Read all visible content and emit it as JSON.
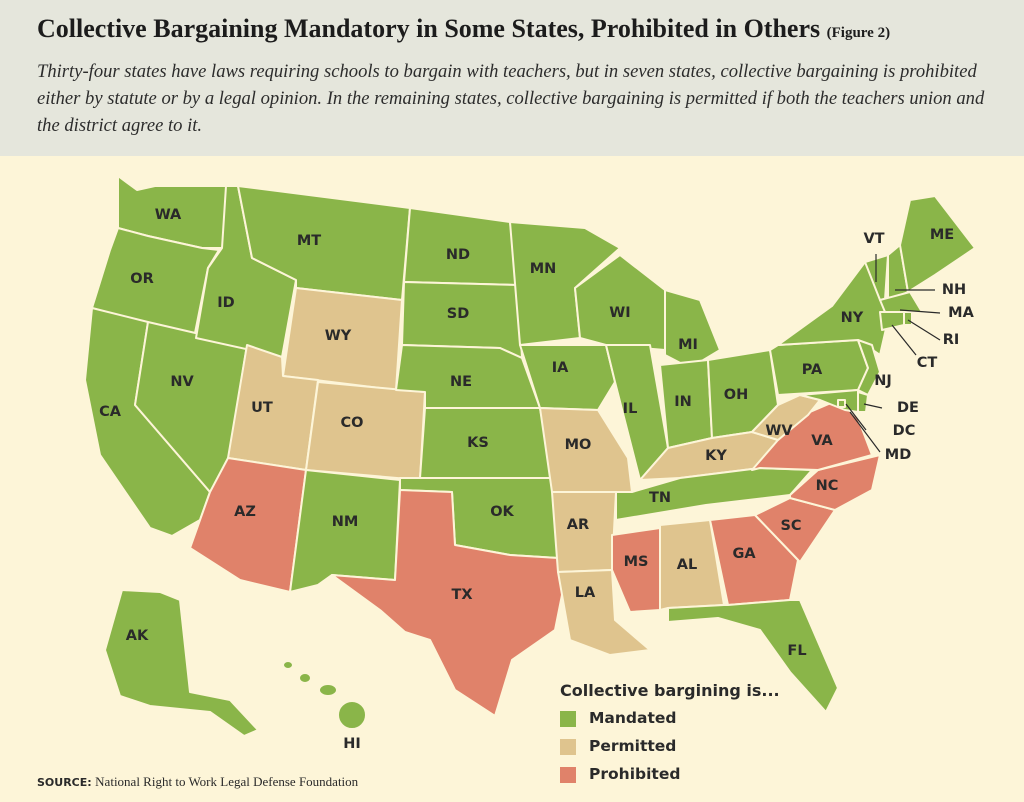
{
  "title": "Collective Bargaining Mandatory in Some States, Prohibited in Others",
  "figure_label": "(Figure 2)",
  "subtitle": "Thirty-four states have laws requiring schools to bargain with teachers, but in seven states, collective bargaining is prohibited either by statute or by a legal opinion. In the remaining states, collective bargaining is permitted if both the teachers union and the district agree to it.",
  "colors": {
    "mandated": "#8ab549",
    "permitted": "#dfc48e",
    "prohibited": "#e0826a",
    "background": "#fdf5d8",
    "header": "#e5e6dc"
  },
  "legend": {
    "title": "Collective bargining is...",
    "items": [
      {
        "key": "mandated",
        "label": "Mandated"
      },
      {
        "key": "permitted",
        "label": "Permitted"
      },
      {
        "key": "prohibited",
        "label": "Prohibited"
      }
    ]
  },
  "states": {
    "WA": "mandated",
    "OR": "mandated",
    "CA": "mandated",
    "NV": "mandated",
    "ID": "mandated",
    "MT": "mandated",
    "WY": "permitted",
    "UT": "permitted",
    "CO": "permitted",
    "AZ": "prohibited",
    "NM": "mandated",
    "ND": "mandated",
    "SD": "mandated",
    "NE": "mandated",
    "KS": "mandated",
    "OK": "mandated",
    "TX": "prohibited",
    "MN": "mandated",
    "IA": "mandated",
    "MO": "permitted",
    "AR": "permitted",
    "LA": "permitted",
    "WI": "mandated",
    "IL": "mandated",
    "MI": "mandated",
    "IN": "mandated",
    "OH": "mandated",
    "KY": "permitted",
    "TN": "mandated",
    "MS": "prohibited",
    "AL": "permitted",
    "GA": "prohibited",
    "FL": "mandated",
    "SC": "prohibited",
    "NC": "prohibited",
    "VA": "prohibited",
    "WV": "permitted",
    "PA": "mandated",
    "NY": "mandated",
    "VT": "mandated",
    "NH": "mandated",
    "ME": "mandated",
    "MA": "mandated",
    "RI": "mandated",
    "CT": "mandated",
    "NJ": "mandated",
    "DE": "mandated",
    "MD": "mandated",
    "DC": "mandated",
    "AK": "mandated",
    "HI": "mandated"
  },
  "source": {
    "label": "SOURCE:",
    "text": "National Right to Work Legal Defense Foundation"
  }
}
